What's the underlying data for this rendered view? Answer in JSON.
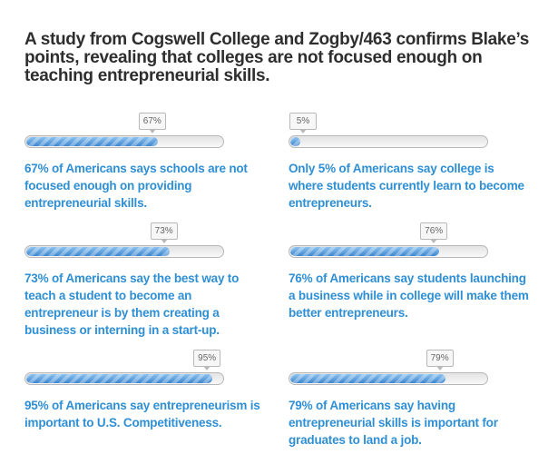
{
  "title": "A study from Cogswell College and Zogby/463 confirms Blake’s points, revealing that colleges are not focused enough on teaching entrepreneurial skills.",
  "colors": {
    "fill": "#4a90d9",
    "text": "#2f8fd4",
    "title": "#2e2e2e"
  },
  "chart_data": {
    "type": "bar",
    "title": "A study from Cogswell College and Zogby/463 confirms Blake’s points, revealing that colleges are not focused enough on teaching entrepreneurial skills.",
    "ylim": [
      0,
      100
    ],
    "stats": [
      {
        "value": 67,
        "label": "67%",
        "text": "67% of Americans says schools are not focused enough on providing entrepreneurial skills."
      },
      {
        "value": 5,
        "label": "5%",
        "text": "Only 5% of Americans say college is where students currently learn to become entrepreneurs."
      },
      {
        "value": 73,
        "label": "73%",
        "text": "73% of Americans say the best way to teach a student to become an entrepreneur is by them creating a business or interning in a start-up."
      },
      {
        "value": 76,
        "label": "76%",
        "text": "76% of Americans say students launching a business while in college will make them better entrepreneurs."
      },
      {
        "value": 95,
        "label": "95%",
        "text": "95% of Americans say entrepreneurism is important to U.S. Competitiveness."
      },
      {
        "value": 79,
        "label": "79%",
        "text": "79% of Americans say having entrepreneurial skills is important for graduates to land a job."
      }
    ]
  }
}
